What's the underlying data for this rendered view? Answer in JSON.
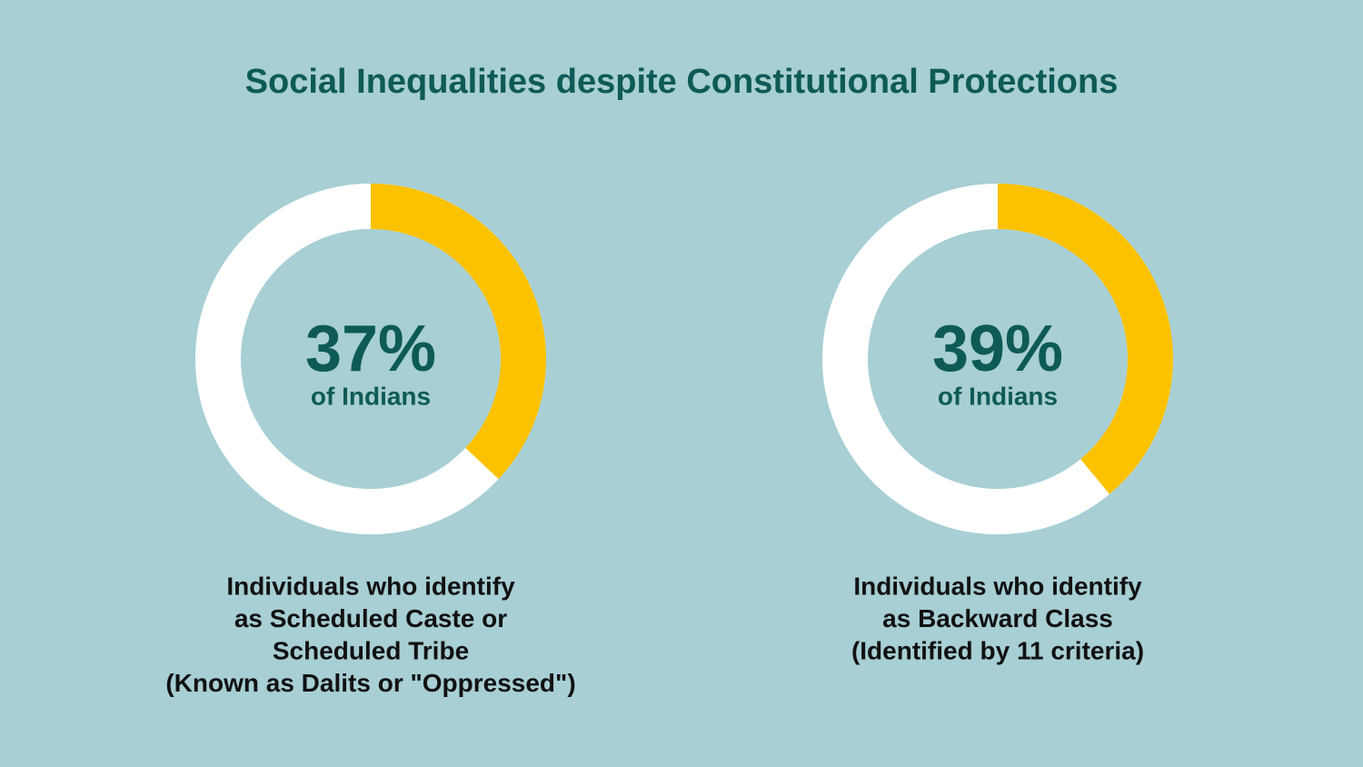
{
  "title": "Social Inequalities despite Constitutional Protections",
  "chart_data": [
    {
      "type": "donut",
      "values": [
        37
      ],
      "value_labels": [
        "37%"
      ],
      "color": "#fcc200",
      "subtitle": "of Indians",
      "caption": [
        "Individuals who identify",
        "as Scheduled Caste or",
        "Scheduled Tribe",
        "(Known as Dalits or \"Oppressed\")"
      ]
    },
    {
      "type": "donut",
      "values": [
        39
      ],
      "value_labels": [
        "39%"
      ],
      "color": "#fcc200",
      "subtitle": "of Indians",
      "caption": [
        "Individuals who identify",
        "as Backward Class",
        "(Identified by 11 criteria)"
      ]
    }
  ]
}
